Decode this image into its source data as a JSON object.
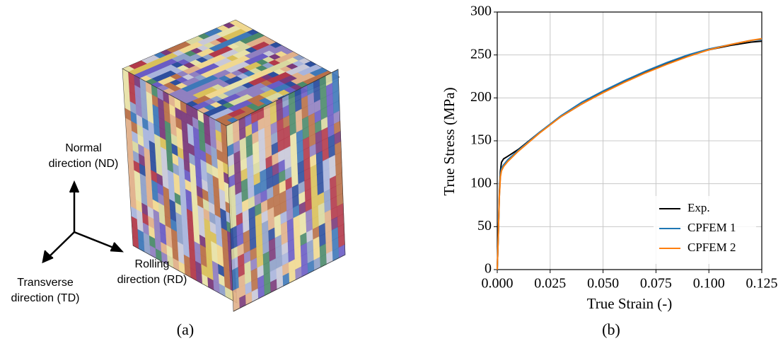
{
  "panel_a": {
    "normal_direction": [
      "Normal",
      "direction (ND)"
    ],
    "rolling_direction": [
      "Rolling",
      "direction (RD)"
    ],
    "transverse_direction": [
      "Transverse",
      "direction (TD)"
    ],
    "caption": "(a)"
  },
  "chart_data": {
    "type": "line",
    "caption": "(b)",
    "x_label": "True Strain (-)",
    "y_label": "True Stress (MPa)",
    "x": [
      0,
      0.0005,
      0.001,
      0.0015,
      0.002,
      0.003,
      0.005,
      0.01,
      0.02,
      0.03,
      0.04,
      0.05,
      0.06,
      0.07,
      0.08,
      0.09,
      0.1,
      0.11,
      0.12,
      0.125
    ],
    "series": [
      {
        "name": "Exp.",
        "color": "#000000",
        "values": [
          0,
          40,
          90,
          115,
          125,
          129,
          132,
          140,
          160,
          178,
          193,
          207,
          219,
          230,
          240,
          249,
          256,
          261,
          265,
          266
        ]
      },
      {
        "name": "CPFEM 1",
        "color": "#1f77b4",
        "values": [
          0,
          40,
          85,
          110,
          118,
          122,
          128,
          139,
          160,
          179,
          195,
          208,
          220,
          231,
          241,
          250,
          257,
          262,
          267,
          268
        ]
      },
      {
        "name": "CPFEM 2",
        "color": "#ff7f0e",
        "values": [
          0,
          40,
          85,
          108,
          115,
          120,
          126,
          138,
          159,
          178,
          193,
          206,
          218,
          229,
          239,
          248,
          256,
          262,
          267,
          269
        ]
      }
    ],
    "xlim": [
      0,
      0.125
    ],
    "xticks": [
      {
        "value": 0,
        "label": "0.000"
      },
      0.025,
      {
        "value": 0.05,
        "label": "0.050"
      },
      0.075,
      {
        "value": 0.1,
        "label": "0.100"
      },
      0.125
    ],
    "ylim": [
      0,
      300
    ],
    "yticks": [
      0,
      50,
      100,
      150,
      200,
      250,
      300
    ],
    "grid": true,
    "legend": "lower right"
  }
}
